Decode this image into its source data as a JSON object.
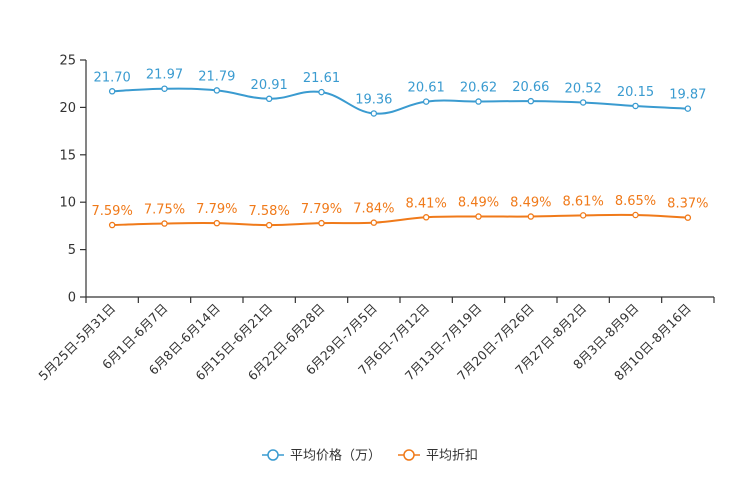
{
  "chart_data": {
    "type": "line",
    "title": "",
    "xlabel": "",
    "ylabel": "",
    "ylim": [
      0,
      25
    ],
    "yticks": [
      0,
      5,
      10,
      15,
      20,
      25
    ],
    "grid": false,
    "legend_position": "bottom-center",
    "categories": [
      "5月25日-5月31日",
      "6月1日-6月7日",
      "6月8日-6月14日",
      "6月15日-6月21日",
      "6月22日-6月28日",
      "6月29日-7月5日",
      "7月6日-7月12日",
      "7月13日-7月19日",
      "7月20日-7月26日",
      "7月27日-8月2日",
      "8月3日-8月9日",
      "8月10日-8月16日"
    ],
    "series": [
      {
        "name": "平均价格（万）",
        "color": "#3a9bd0",
        "values": [
          21.7,
          21.97,
          21.79,
          20.91,
          21.61,
          19.36,
          20.61,
          20.62,
          20.66,
          20.52,
          20.15,
          19.87
        ],
        "labels": [
          "21.70",
          "21.97",
          "21.79",
          "20.91",
          "21.61",
          "19.36",
          "20.61",
          "20.62",
          "20.66",
          "20.52",
          "20.15",
          "19.87"
        ]
      },
      {
        "name": "平均折扣",
        "color": "#f07a1a",
        "values": [
          7.59,
          7.75,
          7.79,
          7.58,
          7.79,
          7.84,
          8.41,
          8.49,
          8.49,
          8.61,
          8.65,
          8.37
        ],
        "labels": [
          "7.59%",
          "7.75%",
          "7.79%",
          "7.58%",
          "7.79%",
          "7.84%",
          "8.41%",
          "8.49%",
          "8.49%",
          "8.61%",
          "8.65%",
          "8.37%"
        ]
      }
    ]
  }
}
